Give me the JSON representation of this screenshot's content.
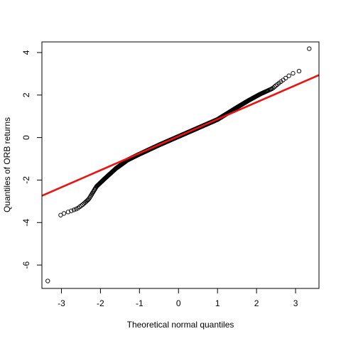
{
  "chart_data": {
    "type": "scatter",
    "subtype": "qq-plot",
    "title": "",
    "xlabel": "Theoretical normal quantiles",
    "ylabel": "Quantiles of ORB returns",
    "xlim": [
      -3.5,
      3.6
    ],
    "ylim": [
      -7.1,
      4.5
    ],
    "x_ticks": [
      -3,
      -2,
      -1,
      0,
      1,
      2,
      3
    ],
    "y_ticks": [
      -6,
      -4,
      -2,
      0,
      2,
      4
    ],
    "grid": false,
    "legend": "none",
    "point_color": "#000000",
    "reference_line": {
      "color": "#ee1111",
      "intercept": 0.06,
      "slope": 0.8
    },
    "profile": [
      [
        -2.9,
        -3.55
      ],
      [
        -2.6,
        -3.35
      ],
      [
        -2.45,
        -3.15
      ],
      [
        -2.3,
        -2.9
      ],
      [
        -2.1,
        -2.3
      ],
      [
        -1.9,
        -1.95
      ],
      [
        -1.6,
        -1.45
      ],
      [
        -1.3,
        -1.05
      ],
      [
        -1.0,
        -0.78
      ],
      [
        -0.5,
        -0.35
      ],
      [
        0.0,
        0.05
      ],
      [
        0.5,
        0.45
      ],
      [
        1.0,
        0.85
      ],
      [
        1.5,
        1.42
      ],
      [
        1.8,
        1.75
      ],
      [
        2.1,
        2.05
      ],
      [
        2.4,
        2.3
      ],
      [
        2.6,
        2.6
      ],
      [
        2.9,
        3.0
      ],
      [
        3.05,
        3.1
      ]
    ],
    "outliers": [
      {
        "x": -3.35,
        "y": -6.75
      },
      {
        "x": -3.02,
        "y": -3.65
      },
      {
        "x": 3.35,
        "y": 4.18
      }
    ],
    "n_points": 1500
  }
}
